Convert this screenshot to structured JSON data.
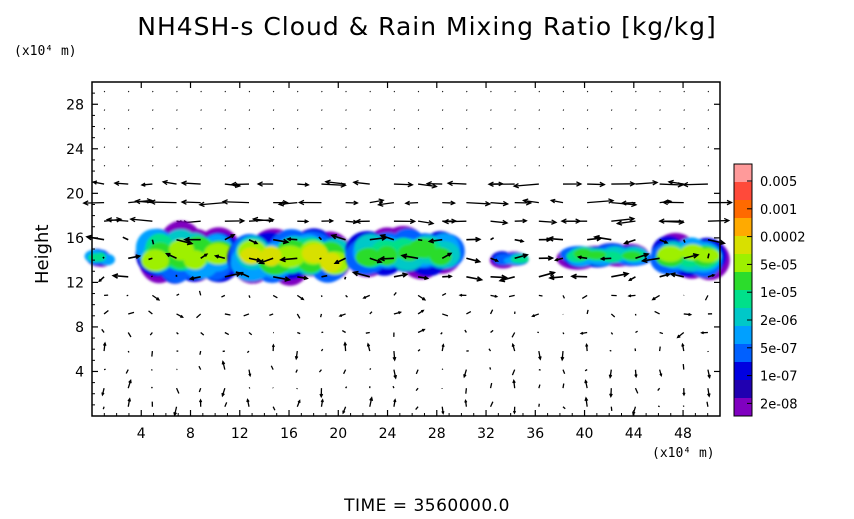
{
  "chart_data": {
    "type": "heatmap",
    "title": "NH4SH-s Cloud & Rain Mixing Ratio [kg/kg]",
    "ylabel": "Height",
    "y_unit": "(x10⁴ m)",
    "x_unit": "(x10⁴ m)",
    "xlim": [
      0,
      51
    ],
    "ylim": [
      0,
      30
    ],
    "xticks": [
      4,
      8,
      12,
      16,
      20,
      24,
      28,
      32,
      36,
      40,
      44,
      48
    ],
    "yticks": [
      4,
      8,
      12,
      16,
      20,
      24,
      28
    ],
    "colorbar": {
      "labels": [
        "0.005",
        "0.001",
        "0.0002",
        "5e-05",
        "1e-05",
        "2e-06",
        "5e-07",
        "1e-07",
        "2e-08"
      ],
      "colors": [
        "#ff9a9a",
        "#ff4a3a",
        "#ff6a00",
        "#ffaa00",
        "#d8e000",
        "#9ef000",
        "#2cdc2c",
        "#00e08a",
        "#00c8c8",
        "#00a0ff",
        "#0060ff",
        "#0000e0",
        "#2000b0",
        "#8000c0"
      ]
    },
    "cloud_regions": [
      {
        "x": [
          0,
          1.5
        ],
        "y": [
          13.6,
          14.8
        ],
        "peak": "2e-06"
      },
      {
        "x": [
          4,
          11.5
        ],
        "y": [
          12.4,
          16.6
        ],
        "peak": "5e-05"
      },
      {
        "x": [
          11.5,
          21
        ],
        "y": [
          12.4,
          16.2
        ],
        "peak": "0.0002"
      },
      {
        "x": [
          21,
          30
        ],
        "y": [
          13.0,
          16.4
        ],
        "peak": "1e-05"
      },
      {
        "x": [
          33,
          35
        ],
        "y": [
          13.6,
          14.6
        ],
        "peak": "2e-06"
      },
      {
        "x": [
          38.5,
          45
        ],
        "y": [
          13.6,
          15.2
        ],
        "peak": "1e-05"
      },
      {
        "x": [
          46,
          51
        ],
        "y": [
          12.8,
          15.8
        ],
        "peak": "5e-05"
      }
    ],
    "grid": false,
    "vectors": "wind arrows overlaid on regular grid"
  },
  "time_label": "TIME = 3560000.0"
}
